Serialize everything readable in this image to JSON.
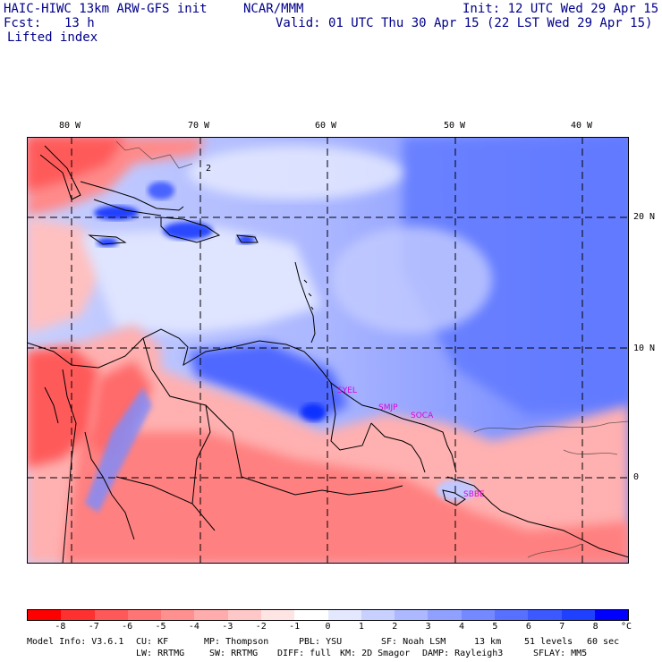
{
  "header": {
    "model": "HAIC-HIWC 13km ARW-GFS init",
    "org": "NCAR/MMM",
    "init": "Init: 12 UTC Wed 29 Apr 15",
    "fcst_label": "Fcst:",
    "fcst_value": "13 h",
    "valid": "Valid: 01 UTC Thu 30 Apr 15 (22 LST Wed 29 Apr 15)",
    "field": "Lifted index"
  },
  "map": {
    "lon_labels": [
      "80 W",
      "70 W",
      "60 W",
      "50 W",
      "40 W"
    ],
    "lat_labels": [
      "20 N",
      "10 N",
      "0"
    ],
    "contour_label": "2",
    "stations": [
      "SYEL",
      "SMJP",
      "SOCA",
      "SBBE"
    ]
  },
  "colorbar": {
    "colors": [
      "#ff0000",
      "#ff3030",
      "#ff5858",
      "#ff7474",
      "#ff9090",
      "#ffacac",
      "#ffc8c8",
      "#ffe4e4",
      "#ffffff",
      "#e4e8ff",
      "#c8d0ff",
      "#acb8ff",
      "#90a0ff",
      "#7488ff",
      "#5870ff",
      "#3c58ff",
      "#2040ff",
      "#0000ff"
    ],
    "ticks": [
      "-8",
      "-7",
      "-6",
      "-5",
      "-4",
      "-3",
      "-2",
      "-1",
      "0",
      "1",
      "2",
      "3",
      "4",
      "5",
      "6",
      "7",
      "8"
    ],
    "unit": "°C"
  },
  "footer": {
    "line1": [
      "Model Info: V3.6.1",
      "CU: KF",
      "MP: Thompson",
      "PBL: YSU",
      "SF: Noah LSM",
      "13 km",
      "51 levels",
      "60 sec"
    ],
    "line2": [
      "LW: RRTMG",
      "SW: RRTMG",
      "DIFF: full",
      "KM: 2D Smagor",
      "DAMP: Rayleigh3",
      "SFLAY: MM5"
    ]
  }
}
